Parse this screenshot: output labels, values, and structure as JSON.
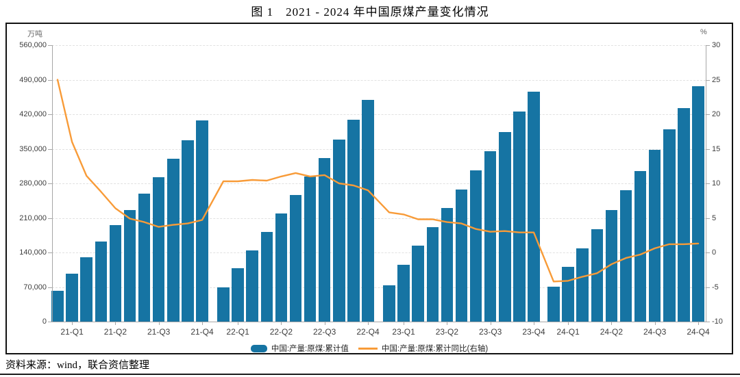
{
  "page": {
    "title": "图 1　2021 - 2024 年中国原煤产量变化情况",
    "source_note": "资料来源：wind，联合资信整理"
  },
  "chart_data": {
    "type": "bar",
    "subtype": "bar+line-combo",
    "title": "图 1　2021 - 2024 年中国原煤产量变化情况",
    "grid": true,
    "legend_position": "bottom",
    "left_axis": {
      "unit": "万吨",
      "min": 0,
      "max": 560000,
      "tick_step": 70000,
      "tick_labels": [
        "560,000",
        "490,000",
        "420,000",
        "350,000",
        "280,000",
        "210,000",
        "140,000",
        "70,000",
        "0"
      ]
    },
    "right_axis": {
      "unit": "%",
      "min": -10,
      "max": 30,
      "tick_step": 5,
      "tick_labels": [
        "30",
        "25",
        "20",
        "15",
        "10",
        "5",
        "0",
        "-5",
        "-10"
      ]
    },
    "x_tick_labels": [
      "21-Q1",
      "21-Q2",
      "21-Q3",
      "21-Q4",
      "22-Q1",
      "22-Q2",
      "22-Q3",
      "22-Q4",
      "23-Q1",
      "23-Q2",
      "23-Q3",
      "23-Q4",
      "24-Q1",
      "24-Q2",
      "24-Q3",
      "24-Q4"
    ],
    "months": [
      "2021-02",
      "2021-03",
      "2021-04",
      "2021-05",
      "2021-06",
      "2021-07",
      "2021-08",
      "2021-09",
      "2021-10",
      "2021-11",
      "2021-12",
      "2022-02",
      "2022-03",
      "2022-04",
      "2022-05",
      "2022-06",
      "2022-07",
      "2022-08",
      "2022-09",
      "2022-10",
      "2022-11",
      "2022-12",
      "2023-02",
      "2023-03",
      "2023-04",
      "2023-05",
      "2023-06",
      "2023-07",
      "2023-08",
      "2023-09",
      "2023-10",
      "2023-11",
      "2023-12",
      "2024-02",
      "2024-03",
      "2024-04",
      "2024-05",
      "2024-06",
      "2024-07",
      "2024-08",
      "2024-09",
      "2024-10",
      "2024-11",
      "2024-12"
    ],
    "series": [
      {
        "name": "中国:产量:原煤:累计值",
        "type": "bar",
        "axis": "left",
        "color": "#1674A3",
        "values": [
          61800,
          97100,
          129700,
          162400,
          194900,
          226200,
          259700,
          293000,
          329700,
          367100,
          407100,
          68700,
          108300,
          144800,
          181200,
          219200,
          256200,
          293300,
          331700,
          368500,
          409400,
          449600,
          73400,
          115300,
          153600,
          191900,
          230100,
          267900,
          306100,
          345400,
          384400,
          425400,
          465800,
          70500,
          110500,
          148100,
          186500,
          226600,
          265800,
          305000,
          347600,
          389100,
          432800,
          476800
        ]
      },
      {
        "name": "中国:产量:原煤:累计同比(右轴)",
        "type": "line",
        "axis": "right",
        "color": "#F89B38",
        "values": [
          25.0,
          16.0,
          11.1,
          8.8,
          6.4,
          4.9,
          4.4,
          3.7,
          4.0,
          4.2,
          4.7,
          10.3,
          10.3,
          10.5,
          10.4,
          11.0,
          11.5,
          11.0,
          11.2,
          10.0,
          9.7,
          9.0,
          5.8,
          5.5,
          4.8,
          4.8,
          4.4,
          4.2,
          3.4,
          3.0,
          3.1,
          2.9,
          2.9,
          -4.2,
          -4.1,
          -3.5,
          -3.0,
          -1.7,
          -0.8,
          -0.3,
          0.6,
          1.2,
          1.2,
          1.3
        ]
      }
    ]
  },
  "colors": {
    "bar": "#1674A3",
    "line": "#F89B38",
    "gridline": "#E1E1E1",
    "axis": "#A6A6A6",
    "frame_border": "#111111"
  }
}
